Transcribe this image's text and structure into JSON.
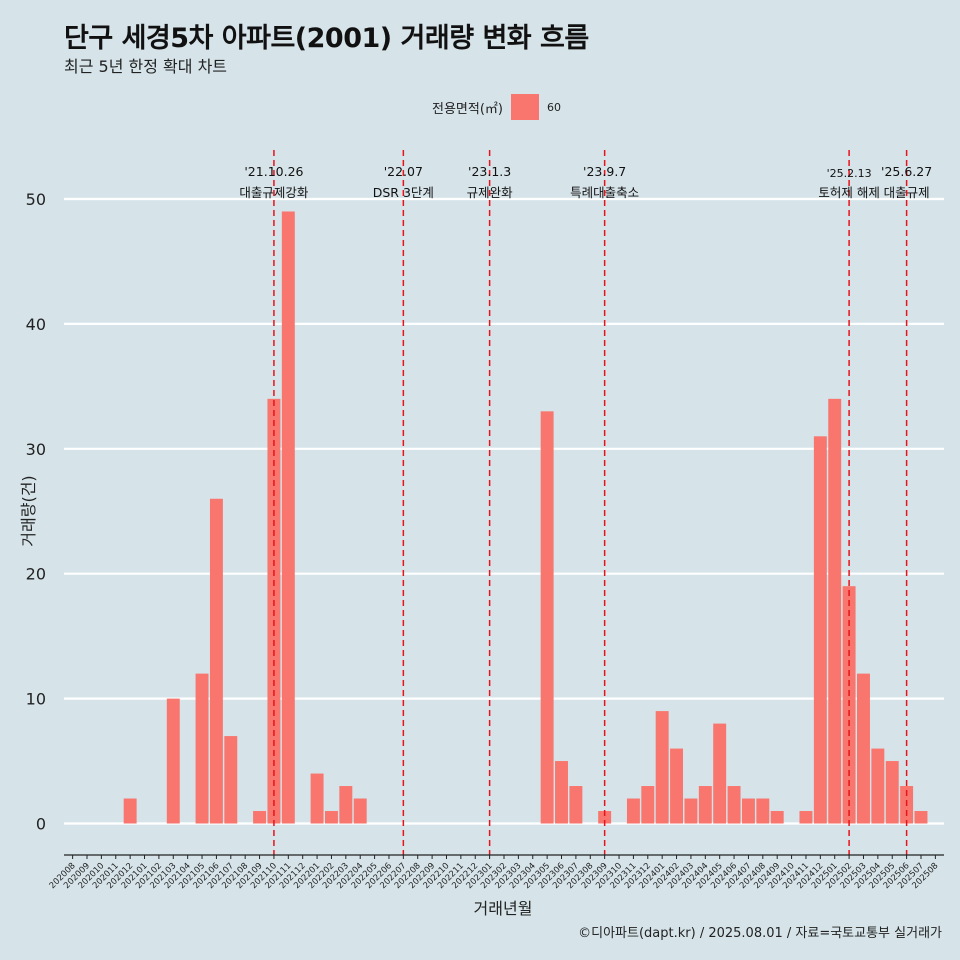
{
  "chart_data": {
    "type": "bar",
    "title": "단구 세경5차 아파트(2001) 거래량 변화 흐름",
    "subtitle": "최근 5년 한정 확대 차트",
    "xlabel": "거래년월",
    "ylabel": "거래량(건)",
    "caption": "©디아파트(dapt.kr) / 2025.08.01 / 자료=국토교통부 실거래가",
    "legend": {
      "title": "전용면적(㎡)",
      "entries": [
        "60"
      ],
      "placement": "top"
    },
    "ylim": [
      -2.5,
      55
    ],
    "yticks": [
      0,
      10,
      20,
      30,
      40,
      50
    ],
    "grid": true,
    "bar_color": "#f8766d",
    "categories": [
      "202008",
      "202009",
      "202010",
      "202011",
      "202012",
      "202101",
      "202102",
      "202103",
      "202104",
      "202105",
      "202106",
      "202107",
      "202108",
      "202109",
      "202110",
      "202111",
      "202112",
      "202201",
      "202202",
      "202203",
      "202204",
      "202205",
      "202206",
      "202207",
      "202208",
      "202209",
      "202210",
      "202211",
      "202212",
      "202301",
      "202302",
      "202303",
      "202304",
      "202305",
      "202306",
      "202307",
      "202308",
      "202309",
      "202310",
      "202311",
      "202312",
      "202401",
      "202402",
      "202403",
      "202404",
      "202405",
      "202406",
      "202407",
      "202408",
      "202409",
      "202410",
      "202411",
      "202412",
      "202501",
      "202502",
      "202503",
      "202504",
      "202505",
      "202506",
      "202507",
      "202508"
    ],
    "series": [
      {
        "name": "60",
        "values": [
          0,
          0,
          0,
          0,
          2,
          0,
          0,
          10,
          0,
          12,
          26,
          7,
          0,
          1,
          34,
          49,
          0,
          4,
          1,
          3,
          2,
          0,
          0,
          0,
          0,
          0,
          0,
          0,
          0,
          0,
          0,
          0,
          0,
          33,
          5,
          3,
          0,
          1,
          0,
          2,
          3,
          9,
          6,
          2,
          3,
          8,
          3,
          2,
          2,
          1,
          0,
          1,
          31,
          34,
          19,
          12,
          6,
          5,
          3,
          1,
          0
        ]
      }
    ],
    "annotations": [
      {
        "x": "202110",
        "date": "'21.10.26",
        "label": "대출규제강화"
      },
      {
        "x": "202207",
        "date": "'22.07",
        "label": "DSR 3단계"
      },
      {
        "x": "202301",
        "date": "'23.1.3",
        "label": "규제완화"
      },
      {
        "x": "202309",
        "date": "'23.9.7",
        "label": "특례대출축소"
      },
      {
        "x": "202502",
        "date": "'25.2.13",
        "label": "토허제 해제"
      },
      {
        "x": "202506",
        "date": "'25.6.27",
        "label": "대출규제"
      }
    ]
  }
}
